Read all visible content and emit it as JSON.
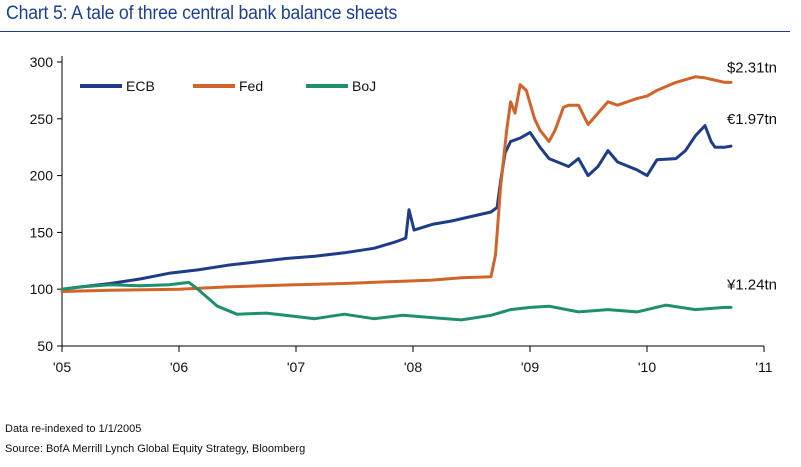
{
  "header": {
    "title": "Chart 5: A tale of three central bank balance sheets"
  },
  "footnotes": {
    "note": "Data re-indexed to 1/1/2005",
    "source": "Source: BofA Merrill Lynch Global Equity Strategy, Bloomberg"
  },
  "colors": {
    "title": "#1c3f94",
    "ecb": "#1f3c88",
    "fed": "#d2642a",
    "boj": "#1f8f6e"
  },
  "chart_data": {
    "type": "line",
    "title": "",
    "xlabel": "",
    "ylabel": "",
    "x_ticks": [
      "'05",
      "'06",
      "'07",
      "'08",
      "'09",
      "'10",
      "'11"
    ],
    "xlim": [
      "2005-01-01",
      "2011-01-01"
    ],
    "y_ticks": [
      50,
      100,
      150,
      200,
      250,
      300
    ],
    "ylim": [
      50,
      300
    ],
    "grid": false,
    "legend_position": "top-left",
    "series": [
      {
        "name": "ECB",
        "color": "#1f3c88",
        "end_label": "€1.97tn",
        "points": [
          [
            "2005-01-01",
            100
          ],
          [
            "2005-03-01",
            102
          ],
          [
            "2005-06-01",
            105
          ],
          [
            "2005-09-01",
            109
          ],
          [
            "2005-12-01",
            114
          ],
          [
            "2006-03-01",
            117
          ],
          [
            "2006-06-01",
            121
          ],
          [
            "2006-09-01",
            124
          ],
          [
            "2006-12-01",
            127
          ],
          [
            "2007-03-01",
            129
          ],
          [
            "2007-06-01",
            132
          ],
          [
            "2007-09-01",
            136
          ],
          [
            "2007-11-01",
            141
          ],
          [
            "2007-12-10",
            145
          ],
          [
            "2007-12-20",
            170
          ],
          [
            "2008-01-05",
            152
          ],
          [
            "2008-03-01",
            157
          ],
          [
            "2008-05-01",
            160
          ],
          [
            "2008-07-01",
            164
          ],
          [
            "2008-09-01",
            168
          ],
          [
            "2008-09-20",
            172
          ],
          [
            "2008-10-01",
            195
          ],
          [
            "2008-10-15",
            220
          ],
          [
            "2008-11-01",
            230
          ],
          [
            "2008-12-01",
            233
          ],
          [
            "2009-01-01",
            238
          ],
          [
            "2009-02-01",
            225
          ],
          [
            "2009-03-01",
            215
          ],
          [
            "2009-05-01",
            208
          ],
          [
            "2009-06-01",
            215
          ],
          [
            "2009-07-01",
            200
          ],
          [
            "2009-08-01",
            208
          ],
          [
            "2009-09-01",
            222
          ],
          [
            "2009-10-01",
            212
          ],
          [
            "2009-12-01",
            205
          ],
          [
            "2010-01-01",
            200
          ],
          [
            "2010-02-01",
            214
          ],
          [
            "2010-04-01",
            215
          ],
          [
            "2010-05-01",
            222
          ],
          [
            "2010-06-01",
            235
          ],
          [
            "2010-07-01",
            244
          ],
          [
            "2010-07-20",
            230
          ],
          [
            "2010-08-01",
            225
          ],
          [
            "2010-09-01",
            225
          ],
          [
            "2010-09-20",
            226
          ]
        ]
      },
      {
        "name": "Fed",
        "color": "#d2642a",
        "end_label": "$2.31tn",
        "points": [
          [
            "2005-01-01",
            98
          ],
          [
            "2005-06-01",
            99
          ],
          [
            "2006-01-01",
            100
          ],
          [
            "2006-06-01",
            102
          ],
          [
            "2007-01-01",
            104
          ],
          [
            "2007-06-01",
            105
          ],
          [
            "2007-12-01",
            107
          ],
          [
            "2008-03-01",
            108
          ],
          [
            "2008-06-01",
            110
          ],
          [
            "2008-09-01",
            111
          ],
          [
            "2008-09-15",
            130
          ],
          [
            "2008-10-01",
            190
          ],
          [
            "2008-10-20",
            240
          ],
          [
            "2008-11-01",
            265
          ],
          [
            "2008-11-15",
            255
          ],
          [
            "2008-12-01",
            280
          ],
          [
            "2008-12-20",
            275
          ],
          [
            "2009-01-15",
            250
          ],
          [
            "2009-02-01",
            240
          ],
          [
            "2009-03-01",
            230
          ],
          [
            "2009-03-20",
            240
          ],
          [
            "2009-04-15",
            260
          ],
          [
            "2009-05-01",
            262
          ],
          [
            "2009-06-01",
            262
          ],
          [
            "2009-07-01",
            245
          ],
          [
            "2009-08-01",
            255
          ],
          [
            "2009-09-01",
            265
          ],
          [
            "2009-10-01",
            262
          ],
          [
            "2009-12-01",
            268
          ],
          [
            "2010-01-01",
            270
          ],
          [
            "2010-02-01",
            275
          ],
          [
            "2010-04-01",
            282
          ],
          [
            "2010-06-01",
            287
          ],
          [
            "2010-07-01",
            286
          ],
          [
            "2010-08-01",
            284
          ],
          [
            "2010-09-01",
            282
          ],
          [
            "2010-09-20",
            282
          ]
        ]
      },
      {
        "name": "BoJ",
        "color": "#1f8f6e",
        "end_label": "¥1.24tn",
        "points": [
          [
            "2005-01-01",
            100
          ],
          [
            "2005-03-01",
            102
          ],
          [
            "2005-06-01",
            104
          ],
          [
            "2005-09-01",
            103
          ],
          [
            "2005-12-01",
            104
          ],
          [
            "2006-02-01",
            106
          ],
          [
            "2006-03-01",
            100
          ],
          [
            "2006-05-01",
            85
          ],
          [
            "2006-07-01",
            78
          ],
          [
            "2006-10-01",
            79
          ],
          [
            "2007-01-01",
            76
          ],
          [
            "2007-03-01",
            74
          ],
          [
            "2007-06-01",
            78
          ],
          [
            "2007-09-01",
            74
          ],
          [
            "2007-12-01",
            77
          ],
          [
            "2008-03-01",
            75
          ],
          [
            "2008-06-01",
            73
          ],
          [
            "2008-09-01",
            77
          ],
          [
            "2008-11-01",
            82
          ],
          [
            "2009-01-01",
            84
          ],
          [
            "2009-03-01",
            85
          ],
          [
            "2009-06-01",
            80
          ],
          [
            "2009-09-01",
            82
          ],
          [
            "2009-12-01",
            80
          ],
          [
            "2010-03-01",
            86
          ],
          [
            "2010-06-01",
            82
          ],
          [
            "2010-09-01",
            84
          ],
          [
            "2010-09-20",
            84
          ]
        ]
      }
    ]
  }
}
